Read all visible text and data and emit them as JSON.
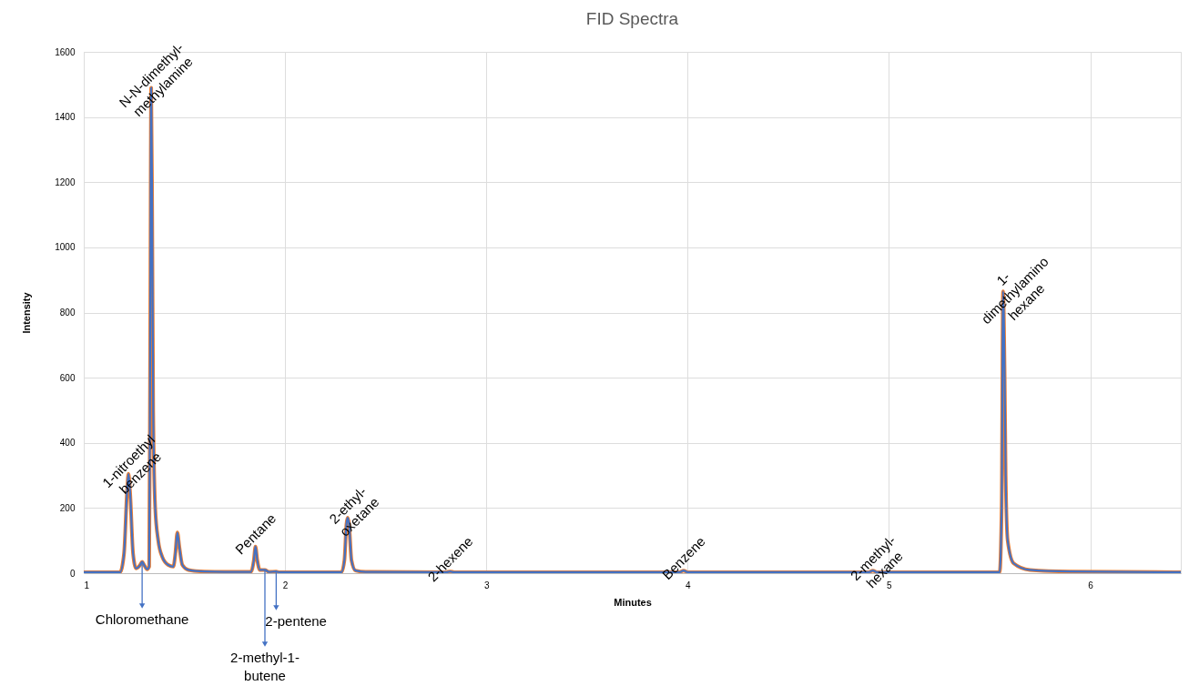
{
  "chart_data": {
    "type": "line",
    "title": "FID Spectra",
    "xlabel": "Minutes",
    "ylabel": "Intensity",
    "x": [
      1.0,
      1.18,
      1.2,
      1.215,
      1.222,
      1.23,
      1.245,
      1.26,
      1.28,
      1.29,
      1.3,
      1.315,
      1.325,
      1.33,
      1.335,
      1.34,
      1.345,
      1.355,
      1.37,
      1.39,
      1.42,
      1.445,
      1.455,
      1.465,
      1.475,
      1.49,
      1.52,
      1.6,
      1.7,
      1.83,
      1.845,
      1.853,
      1.862,
      1.875,
      1.9,
      1.92,
      1.956,
      1.97,
      2.28,
      2.295,
      2.305,
      2.311,
      2.318,
      2.33,
      2.35,
      2.4,
      2.8,
      2.82,
      2.84,
      3.96,
      3.98,
      4.0,
      4.9,
      4.92,
      4.94,
      5.55,
      5.56,
      5.567,
      5.575,
      5.58,
      5.59,
      5.62,
      5.7,
      5.9,
      6.45
    ],
    "series": [
      {
        "color": "#ed7d31",
        "values": [
          3,
          3,
          60,
          250,
          305,
          250,
          60,
          15,
          25,
          35,
          25,
          12,
          20,
          700,
          1490,
          1100,
          500,
          200,
          100,
          50,
          25,
          20,
          60,
          125,
          80,
          25,
          10,
          5,
          4,
          4,
          40,
          82,
          40,
          10,
          10,
          4,
          5,
          3,
          3,
          40,
          150,
          170,
          150,
          40,
          8,
          4,
          3,
          5,
          3,
          3,
          8,
          3,
          3,
          8,
          3,
          3,
          200,
          865,
          600,
          300,
          100,
          30,
          10,
          5,
          3
        ]
      },
      {
        "color": "#4472c4",
        "values": [
          3,
          3,
          60,
          250,
          305,
          250,
          60,
          15,
          25,
          35,
          25,
          12,
          20,
          700,
          1490,
          1100,
          500,
          200,
          100,
          50,
          25,
          20,
          60,
          125,
          80,
          25,
          10,
          5,
          4,
          4,
          40,
          82,
          40,
          10,
          10,
          4,
          5,
          3,
          3,
          40,
          150,
          170,
          150,
          40,
          8,
          4,
          3,
          5,
          3,
          3,
          8,
          3,
          3,
          8,
          3,
          3,
          200,
          865,
          600,
          300,
          100,
          30,
          10,
          5,
          3
        ]
      }
    ],
    "xlim": [
      1,
      6.45
    ],
    "xticks": [
      1,
      2,
      3,
      4,
      5,
      6
    ],
    "ylim": [
      0,
      1600
    ],
    "yticks": [
      0,
      200,
      400,
      600,
      800,
      1000,
      1200,
      1400,
      1600
    ],
    "grid": true,
    "line_style": "solid",
    "marker": "none",
    "annotations": [
      {
        "text": "1-nitroethyl\nbenzene",
        "x": 1.222,
        "y": 305
      },
      {
        "text": "N-N-dimethyl-\nmethylamine",
        "x": 1.335,
        "y": 1490
      },
      {
        "text": "Pentane",
        "x": 1.853,
        "y": 82
      },
      {
        "text": "2-ethyl-\noxetane",
        "x": 2.311,
        "y": 170
      },
      {
        "text": "2-hexene",
        "x": 2.82,
        "y": 5
      },
      {
        "text": "Benzene",
        "x": 3.98,
        "y": 8
      },
      {
        "text": "2-methyl-\nhexane",
        "x": 4.92,
        "y": 8
      },
      {
        "text": "1-\ndimethylamino\nhexane",
        "x": 5.567,
        "y": 865
      },
      {
        "text": "Chloromethane",
        "x": 1.29,
        "y": 35
      },
      {
        "text": "2-methyl-1-\nbutene",
        "x": 1.9,
        "y": 10
      },
      {
        "text": "2-pentene",
        "x": 1.956,
        "y": 5
      }
    ]
  }
}
